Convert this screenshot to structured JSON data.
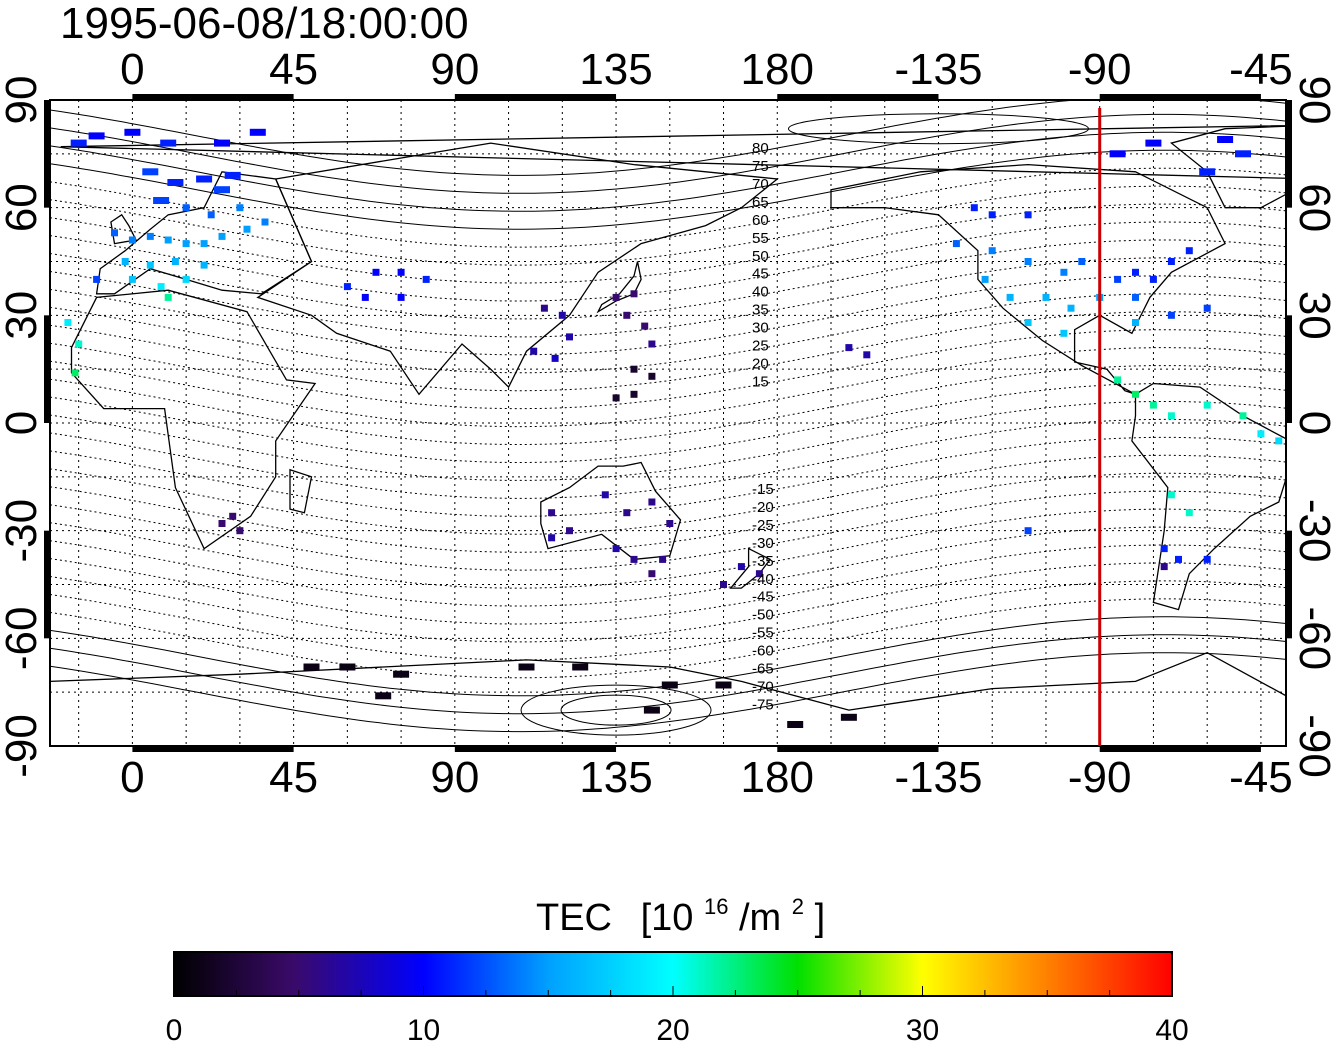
{
  "title": "1995-06-08/18:00:00",
  "colorbar": {
    "title_main": "TEC",
    "title_unit_prefix": "[10",
    "title_unit_exp": "16",
    "title_unit_mid": "/m",
    "title_unit_exp2": "2",
    "title_unit_suffix": "]",
    "min": 0,
    "max": 40,
    "ticks": [
      "0",
      "10",
      "20",
      "30",
      "40"
    ]
  },
  "chart_data": {
    "type": "heatmap",
    "x_axis_ticks_bottom": [
      "0",
      "45",
      "90",
      "135",
      "180",
      "-135",
      "-90",
      "-45"
    ],
    "x_axis_ticks_top": [
      "0",
      "45",
      "90",
      "135",
      "180",
      "-135",
      "-90",
      "-45"
    ],
    "y_axis_ticks_left": [
      "90",
      "60",
      "30",
      "0",
      "-30",
      "-60",
      "-90"
    ],
    "y_axis_ticks_right": [
      "90",
      "60",
      "30",
      "0",
      "-30",
      "-60",
      "-90"
    ],
    "x_range_lon": [
      -23,
      322
    ],
    "y_range_lat": [
      -90,
      90
    ],
    "grid": true,
    "terminator_longitude": -90,
    "terminator_color": "#cc0000",
    "magnetic_latitude_labels": [
      "80",
      "75",
      "70",
      "65",
      "60",
      "55",
      "50",
      "45",
      "40",
      "35",
      "30",
      "25",
      "20",
      "15",
      "-15",
      "-20",
      "-25",
      "-30",
      "-35",
      "-40",
      "-45",
      "-50",
      "-55",
      "-60",
      "-65",
      "-70",
      "-75"
    ],
    "tec_observations": [
      {
        "lon": -15,
        "lat": 78,
        "tec": 11
      },
      {
        "lon": -10,
        "lat": 80,
        "tec": 10
      },
      {
        "lon": 0,
        "lat": 81,
        "tec": 10
      },
      {
        "lon": 10,
        "lat": 78,
        "tec": 11
      },
      {
        "lon": 25,
        "lat": 78,
        "tec": 10
      },
      {
        "lon": 35,
        "lat": 81,
        "tec": 10
      },
      {
        "lon": 5,
        "lat": 70,
        "tec": 12
      },
      {
        "lon": 12,
        "lat": 67,
        "tec": 11
      },
      {
        "lon": 20,
        "lat": 68,
        "tec": 11
      },
      {
        "lon": 25,
        "lat": 65,
        "tec": 12
      },
      {
        "lon": 28,
        "lat": 69,
        "tec": 11
      },
      {
        "lon": 8,
        "lat": 62,
        "tec": 12
      },
      {
        "lon": 15,
        "lat": 60,
        "tec": 13
      },
      {
        "lon": 22,
        "lat": 58,
        "tec": 13
      },
      {
        "lon": 30,
        "lat": 60,
        "tec": 14
      },
      {
        "lon": -5,
        "lat": 53,
        "tec": 13
      },
      {
        "lon": 0,
        "lat": 51,
        "tec": 14
      },
      {
        "lon": 5,
        "lat": 52,
        "tec": 14
      },
      {
        "lon": 10,
        "lat": 51,
        "tec": 15
      },
      {
        "lon": 15,
        "lat": 50,
        "tec": 15
      },
      {
        "lon": 20,
        "lat": 50,
        "tec": 15
      },
      {
        "lon": 25,
        "lat": 52,
        "tec": 15
      },
      {
        "lon": 32,
        "lat": 54,
        "tec": 15
      },
      {
        "lon": 37,
        "lat": 56,
        "tec": 14
      },
      {
        "lon": -2,
        "lat": 45,
        "tec": 16
      },
      {
        "lon": 5,
        "lat": 44,
        "tec": 17
      },
      {
        "lon": 12,
        "lat": 45,
        "tec": 16
      },
      {
        "lon": 20,
        "lat": 44,
        "tec": 16
      },
      {
        "lon": -10,
        "lat": 40,
        "tec": 12
      },
      {
        "lon": 0,
        "lat": 40,
        "tec": 17
      },
      {
        "lon": 8,
        "lat": 38,
        "tec": 19
      },
      {
        "lon": 15,
        "lat": 40,
        "tec": 18
      },
      {
        "lon": 10,
        "lat": 35,
        "tec": 22
      },
      {
        "lon": -18,
        "lat": 28,
        "tec": 19
      },
      {
        "lon": -15,
        "lat": 22,
        "tec": 21
      },
      {
        "lon": -16,
        "lat": 14,
        "tec": 23
      },
      {
        "lon": 60,
        "lat": 38,
        "tec": 11
      },
      {
        "lon": 68,
        "lat": 42,
        "tec": 10
      },
      {
        "lon": 75,
        "lat": 42,
        "tec": 10
      },
      {
        "lon": 82,
        "lat": 40,
        "tec": 11
      },
      {
        "lon": 65,
        "lat": 35,
        "tec": 10
      },
      {
        "lon": 75,
        "lat": 35,
        "tec": 10
      },
      {
        "lon": 115,
        "lat": 32,
        "tec": 6
      },
      {
        "lon": 120,
        "lat": 30,
        "tec": 7
      },
      {
        "lon": 122,
        "lat": 24,
        "tec": 7
      },
      {
        "lon": 112,
        "lat": 20,
        "tec": 7
      },
      {
        "lon": 118,
        "lat": 18,
        "tec": 8
      },
      {
        "lon": 135,
        "lat": 35,
        "tec": 5
      },
      {
        "lon": 140,
        "lat": 36,
        "tec": 5
      },
      {
        "lon": 138,
        "lat": 30,
        "tec": 5
      },
      {
        "lon": 143,
        "lat": 27,
        "tec": 5
      },
      {
        "lon": 145,
        "lat": 22,
        "tec": 6
      },
      {
        "lon": 140,
        "lat": 15,
        "tec": 2
      },
      {
        "lon": 145,
        "lat": 13,
        "tec": 2
      },
      {
        "lon": 140,
        "lat": 8,
        "tec": 2
      },
      {
        "lon": 135,
        "lat": 7,
        "tec": 2
      },
      {
        "lon": 117,
        "lat": -25,
        "tec": 6
      },
      {
        "lon": 122,
        "lat": -30,
        "tec": 6
      },
      {
        "lon": 117,
        "lat": -32,
        "tec": 7
      },
      {
        "lon": 132,
        "lat": -20,
        "tec": 7
      },
      {
        "lon": 138,
        "lat": -25,
        "tec": 6
      },
      {
        "lon": 145,
        "lat": -22,
        "tec": 6
      },
      {
        "lon": 150,
        "lat": -28,
        "tec": 6
      },
      {
        "lon": 135,
        "lat": -35,
        "tec": 7
      },
      {
        "lon": 140,
        "lat": -38,
        "tec": 6
      },
      {
        "lon": 148,
        "lat": -38,
        "tec": 6
      },
      {
        "lon": 145,
        "lat": -42,
        "tec": 5
      },
      {
        "lon": 170,
        "lat": -40,
        "tec": 7
      },
      {
        "lon": 175,
        "lat": -42,
        "tec": 6
      },
      {
        "lon": 165,
        "lat": -45,
        "tec": 6
      },
      {
        "lon": 25,
        "lat": -28,
        "tec": 5
      },
      {
        "lon": 28,
        "lat": -26,
        "tec": 5
      },
      {
        "lon": 30,
        "lat": -30,
        "tec": 5
      },
      {
        "lon": 200,
        "lat": 21,
        "tec": 7
      },
      {
        "lon": 205,
        "lat": 19,
        "tec": 7
      },
      {
        "lon": -125,
        "lat": 60,
        "tec": 11
      },
      {
        "lon": -120,
        "lat": 58,
        "tec": 11
      },
      {
        "lon": -110,
        "lat": 58,
        "tec": 11
      },
      {
        "lon": -130,
        "lat": 50,
        "tec": 13
      },
      {
        "lon": -120,
        "lat": 48,
        "tec": 14
      },
      {
        "lon": -110,
        "lat": 45,
        "tec": 14
      },
      {
        "lon": -100,
        "lat": 42,
        "tec": 14
      },
      {
        "lon": -95,
        "lat": 45,
        "tec": 13
      },
      {
        "lon": -122,
        "lat": 40,
        "tec": 15
      },
      {
        "lon": -115,
        "lat": 35,
        "tec": 16
      },
      {
        "lon": -105,
        "lat": 35,
        "tec": 16
      },
      {
        "lon": -98,
        "lat": 32,
        "tec": 16
      },
      {
        "lon": -110,
        "lat": 28,
        "tec": 17
      },
      {
        "lon": -100,
        "lat": 25,
        "tec": 17
      },
      {
        "lon": -90,
        "lat": 35,
        "tec": 15
      },
      {
        "lon": -85,
        "lat": 40,
        "tec": 12
      },
      {
        "lon": -80,
        "lat": 42,
        "tec": 11
      },
      {
        "lon": -75,
        "lat": 40,
        "tec": 11
      },
      {
        "lon": -70,
        "lat": 45,
        "tec": 11
      },
      {
        "lon": -65,
        "lat": 48,
        "tec": 11
      },
      {
        "lon": -80,
        "lat": 35,
        "tec": 13
      },
      {
        "lon": -70,
        "lat": 30,
        "tec": 12
      },
      {
        "lon": -60,
        "lat": 32,
        "tec": 12
      },
      {
        "lon": -80,
        "lat": 28,
        "tec": 16
      },
      {
        "lon": -85,
        "lat": 75,
        "tec": 10
      },
      {
        "lon": -75,
        "lat": 78,
        "tec": 10
      },
      {
        "lon": -55,
        "lat": 79,
        "tec": 10
      },
      {
        "lon": -50,
        "lat": 75,
        "tec": 11
      },
      {
        "lon": -60,
        "lat": 70,
        "tec": 11
      },
      {
        "lon": -85,
        "lat": 12,
        "tec": 22
      },
      {
        "lon": -80,
        "lat": 8,
        "tec": 23
      },
      {
        "lon": -75,
        "lat": 5,
        "tec": 22
      },
      {
        "lon": -70,
        "lat": 2,
        "tec": 21
      },
      {
        "lon": -60,
        "lat": 5,
        "tec": 21
      },
      {
        "lon": -50,
        "lat": 2,
        "tec": 22
      },
      {
        "lon": -45,
        "lat": -3,
        "tec": 19
      },
      {
        "lon": -40,
        "lat": -5,
        "tec": 18
      },
      {
        "lon": -70,
        "lat": -20,
        "tec": 21
      },
      {
        "lon": -65,
        "lat": -25,
        "tec": 21
      },
      {
        "lon": -72,
        "lat": -35,
        "tec": 11
      },
      {
        "lon": -68,
        "lat": -38,
        "tec": 11
      },
      {
        "lon": -60,
        "lat": -38,
        "tec": 11
      },
      {
        "lon": -72,
        "lat": -40,
        "tec": 6
      },
      {
        "lon": -110,
        "lat": -30,
        "tec": 12
      },
      {
        "lon": 50,
        "lat": -68,
        "tec": 1
      },
      {
        "lon": 60,
        "lat": -68,
        "tec": 1
      },
      {
        "lon": 75,
        "lat": -70,
        "tec": 1
      },
      {
        "lon": 70,
        "lat": -76,
        "tec": 1
      },
      {
        "lon": 110,
        "lat": -68,
        "tec": 1
      },
      {
        "lon": 125,
        "lat": -68,
        "tec": 1
      },
      {
        "lon": 150,
        "lat": -73,
        "tec": 1
      },
      {
        "lon": 165,
        "lat": -73,
        "tec": 1
      },
      {
        "lon": 145,
        "lat": -80,
        "tec": 1
      },
      {
        "lon": 185,
        "lat": -84,
        "tec": 1
      },
      {
        "lon": 200,
        "lat": -82,
        "tec": 1
      }
    ]
  }
}
